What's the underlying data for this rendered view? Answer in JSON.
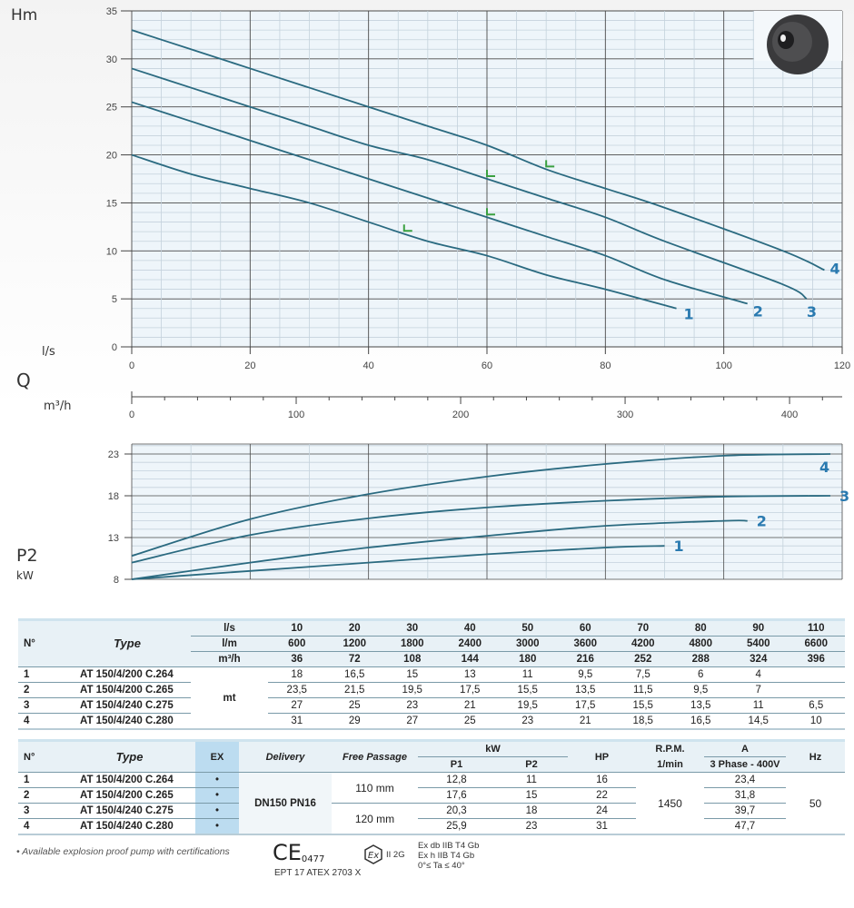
{
  "head_chart": {
    "type": "line",
    "ylabel": "Hm",
    "xlabel": "Q",
    "x_unit_primary": "l/s",
    "x_unit_secondary": "m³/h",
    "xlim": [
      0,
      120
    ],
    "ylim": [
      0,
      35
    ],
    "xticks": [
      0,
      20,
      40,
      60,
      80,
      100,
      120
    ],
    "yticks": [
      0,
      5,
      10,
      15,
      20,
      25,
      30,
      35
    ],
    "secondary_xlim": [
      0,
      432
    ],
    "secondary_xticks": [
      0,
      100,
      200,
      300,
      400
    ],
    "grid": true,
    "curve_color": "#2a6a80",
    "label_color": "#2a7ab0",
    "marker_color": "#3aa040",
    "series": [
      {
        "name": "1",
        "points": [
          [
            0,
            20
          ],
          [
            10,
            18
          ],
          [
            20,
            16.5
          ],
          [
            30,
            15
          ],
          [
            40,
            13
          ],
          [
            50,
            11
          ],
          [
            60,
            9.5
          ],
          [
            70,
            7.5
          ],
          [
            80,
            6
          ],
          [
            92,
            4
          ]
        ],
        "marker_q": 46
      },
      {
        "name": "2",
        "points": [
          [
            0,
            25.5
          ],
          [
            10,
            23.5
          ],
          [
            20,
            21.5
          ],
          [
            30,
            19.5
          ],
          [
            40,
            17.5
          ],
          [
            50,
            15.5
          ],
          [
            60,
            13.5
          ],
          [
            70,
            11.5
          ],
          [
            80,
            9.5
          ],
          [
            90,
            7
          ],
          [
            104,
            4.5
          ]
        ],
        "marker_q": 60
      },
      {
        "name": "3",
        "points": [
          [
            0,
            29
          ],
          [
            10,
            27
          ],
          [
            20,
            25
          ],
          [
            30,
            23
          ],
          [
            40,
            21
          ],
          [
            50,
            19.5
          ],
          [
            60,
            17.5
          ],
          [
            70,
            15.5
          ],
          [
            80,
            13.5
          ],
          [
            90,
            11
          ],
          [
            110,
            6.5
          ],
          [
            114,
            5
          ]
        ],
        "marker_q": 60
      },
      {
        "name": "4",
        "points": [
          [
            0,
            33
          ],
          [
            10,
            31
          ],
          [
            20,
            29
          ],
          [
            30,
            27
          ],
          [
            40,
            25
          ],
          [
            50,
            23
          ],
          [
            60,
            21
          ],
          [
            70,
            18.5
          ],
          [
            80,
            16.5
          ],
          [
            90,
            14.5
          ],
          [
            110,
            10
          ],
          [
            117,
            8
          ]
        ],
        "marker_q": 70
      }
    ]
  },
  "power_chart": {
    "type": "line",
    "ylabel": "P2",
    "yunit": "kW",
    "xlim": [
      0,
      120
    ],
    "ylim": [
      8,
      23
    ],
    "yticks": [
      8,
      13,
      18,
      23
    ],
    "grid": true,
    "series": [
      {
        "name": "1",
        "points": [
          [
            0,
            8
          ],
          [
            20,
            9
          ],
          [
            40,
            10
          ],
          [
            60,
            11
          ],
          [
            80,
            11.8
          ],
          [
            90,
            12
          ]
        ]
      },
      {
        "name": "2",
        "points": [
          [
            0,
            8
          ],
          [
            20,
            10
          ],
          [
            40,
            11.8
          ],
          [
            60,
            13.2
          ],
          [
            80,
            14.4
          ],
          [
            100,
            15
          ],
          [
            104,
            15
          ]
        ]
      },
      {
        "name": "3",
        "points": [
          [
            0,
            10
          ],
          [
            20,
            13.3
          ],
          [
            40,
            15.3
          ],
          [
            60,
            16.6
          ],
          [
            80,
            17.4
          ],
          [
            100,
            17.9
          ],
          [
            118,
            18
          ]
        ]
      },
      {
        "name": "4",
        "points": [
          [
            0,
            10.8
          ],
          [
            20,
            15.2
          ],
          [
            40,
            18.2
          ],
          [
            60,
            20.3
          ],
          [
            80,
            21.8
          ],
          [
            100,
            22.8
          ],
          [
            118,
            23
          ]
        ]
      }
    ]
  },
  "table1": {
    "h_no": "N°",
    "h_type": "Type",
    "units": [
      "l/s",
      "l/m",
      "m³/h"
    ],
    "ls": [
      "10",
      "20",
      "30",
      "40",
      "50",
      "60",
      "70",
      "80",
      "90",
      "110"
    ],
    "lm": [
      "600",
      "1200",
      "1800",
      "2400",
      "3000",
      "3600",
      "4200",
      "4800",
      "5400",
      "6600"
    ],
    "m3h": [
      "36",
      "72",
      "108",
      "144",
      "180",
      "216",
      "252",
      "288",
      "324",
      "396"
    ],
    "head_unit": "mt",
    "rows": [
      {
        "n": "1",
        "type": "AT 150/4/200 C.264",
        "vals": [
          "18",
          "16,5",
          "15",
          "13",
          "11",
          "9,5",
          "7,5",
          "6",
          "4",
          ""
        ]
      },
      {
        "n": "2",
        "type": "AT 150/4/200 C.265",
        "vals": [
          "23,5",
          "21,5",
          "19,5",
          "17,5",
          "15,5",
          "13,5",
          "11,5",
          "9,5",
          "7",
          ""
        ]
      },
      {
        "n": "3",
        "type": "AT 150/4/240 C.275",
        "vals": [
          "27",
          "25",
          "23",
          "21",
          "19,5",
          "17,5",
          "15,5",
          "13,5",
          "11",
          "6,5"
        ]
      },
      {
        "n": "4",
        "type": "AT 150/4/240 C.280",
        "vals": [
          "31",
          "29",
          "27",
          "25",
          "23",
          "21",
          "18,5",
          "16,5",
          "14,5",
          "10"
        ]
      }
    ]
  },
  "table2": {
    "h_no": "N°",
    "h_type": "Type",
    "h_ex": "EX",
    "h_delivery": "Delivery",
    "h_free": "Free Passage",
    "h_kw": "kW",
    "h_p1": "P1",
    "h_p2": "P2",
    "h_hp": "HP",
    "h_rpm": "R.P.M.",
    "h_rpm_unit": "1/min",
    "h_a": "A",
    "h_a_sub": "3 Phase - 400V",
    "h_hz": "Hz",
    "delivery": "DN150 PN16",
    "free_a": "110 mm",
    "free_b": "120 mm",
    "rpm": "1450",
    "hz": "50",
    "rows": [
      {
        "n": "1",
        "type": "AT 150/4/200 C.264",
        "ex": "•",
        "p1": "12,8",
        "p2": "11",
        "hp": "16",
        "a": "23,4"
      },
      {
        "n": "2",
        "type": "AT 150/4/200 C.265",
        "ex": "•",
        "p1": "17,6",
        "p2": "15",
        "hp": "22",
        "a": "31,8"
      },
      {
        "n": "3",
        "type": "AT 150/4/240 C.275",
        "ex": "•",
        "p1": "20,3",
        "p2": "18",
        "hp": "24",
        "a": "39,7"
      },
      {
        "n": "4",
        "type": "AT 150/4/240 C.280",
        "ex": "•",
        "p1": "25,9",
        "p2": "23",
        "hp": "31",
        "a": "47,7"
      }
    ]
  },
  "footer": {
    "note": "• Available explosion proof pump with certifications",
    "ce_mark": "CE",
    "ce_number": "0477",
    "certificate": "EPT 17 ATEX 2703 X",
    "ex_class": "II 2G",
    "ex_lines": [
      "Ex db IIB T4 Gb",
      "Ex h IIB T4 Gb",
      "0°≤ Ta ≤ 40°"
    ]
  }
}
